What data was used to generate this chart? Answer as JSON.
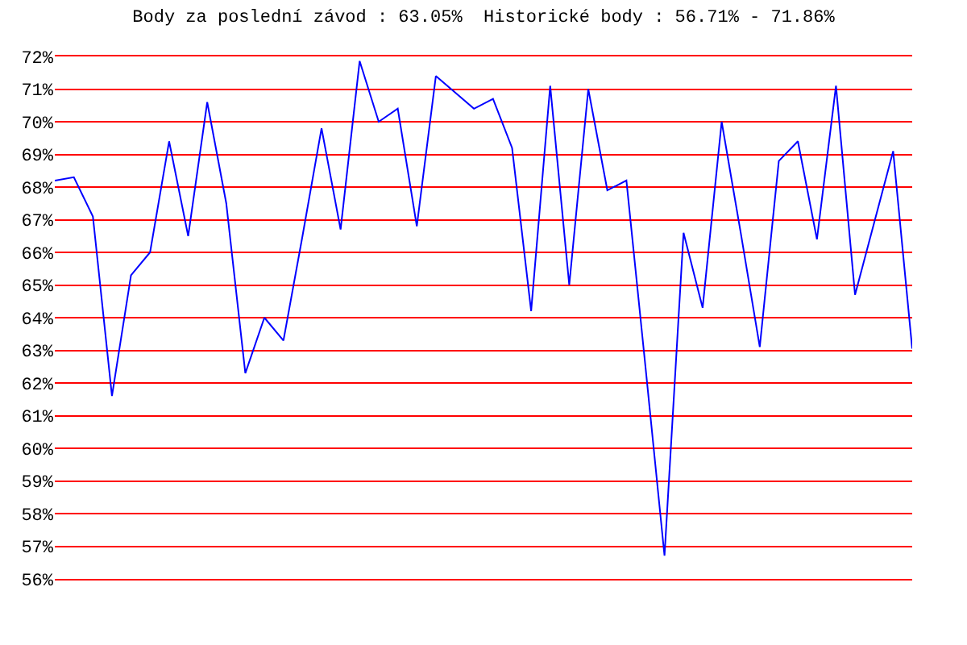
{
  "chart_data": {
    "type": "line",
    "title": "Body za poslední závod : 63.05%  Historické body : 56.71% - 71.86%",
    "categories": [
      null,
      null,
      null,
      null,
      null,
      null,
      null,
      null,
      null,
      null,
      null,
      null,
      null,
      null,
      null,
      null,
      null,
      null,
      null,
      null,
      null,
      null,
      null,
      null,
      null,
      null,
      null,
      null,
      null,
      null,
      null,
      null,
      null,
      null,
      null,
      null,
      null,
      null,
      null,
      null,
      null,
      null,
      null,
      null,
      null,
      null
    ],
    "series": [
      {
        "color": "#0000ff",
        "values": [
          68.2,
          68.3,
          67.1,
          61.6,
          65.3,
          66.0,
          69.4,
          66.5,
          70.6,
          67.5,
          62.3,
          64.0,
          63.3,
          66.5,
          69.8,
          66.7,
          71.86,
          70.0,
          70.4,
          66.8,
          71.4,
          70.9,
          70.4,
          70.7,
          69.2,
          64.2,
          71.1,
          65.0,
          71.0,
          67.9,
          68.2,
          62.5,
          56.71,
          66.6,
          64.3,
          70.0,
          66.6,
          63.1,
          68.8,
          69.4,
          66.4,
          71.1,
          64.7,
          66.9,
          69.1,
          63.05
        ]
      }
    ],
    "ylim": [
      56,
      72
    ],
    "yticks": [
      {
        "value": 56,
        "label": "56%"
      },
      {
        "value": 57,
        "label": "57%"
      },
      {
        "value": 58,
        "label": "58%"
      },
      {
        "value": 59,
        "label": "59%"
      },
      {
        "value": 60,
        "label": "60%"
      },
      {
        "value": 61,
        "label": "61%"
      },
      {
        "value": 62,
        "label": "62%"
      },
      {
        "value": 63,
        "label": "63%"
      },
      {
        "value": 64,
        "label": "64%"
      },
      {
        "value": 65,
        "label": "65%"
      },
      {
        "value": 66,
        "label": "66%"
      },
      {
        "value": 67,
        "label": "67%"
      },
      {
        "value": 68,
        "label": "68%"
      },
      {
        "value": 69,
        "label": "69%"
      },
      {
        "value": 70,
        "label": "70%"
      },
      {
        "value": 71,
        "label": "71%"
      },
      {
        "value": 72,
        "label": "72%"
      }
    ],
    "grid": "y",
    "tick_labels": "y",
    "marker": "none",
    "line_style": "solid"
  }
}
